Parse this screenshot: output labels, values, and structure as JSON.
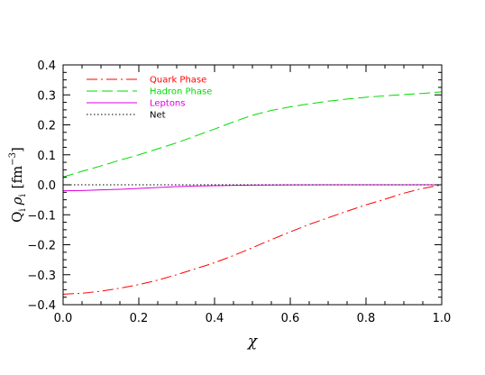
{
  "chart_data": {
    "type": "line",
    "title": "",
    "xlabel": "χ",
    "ylabel": {
      "q": "Q",
      "q_sub": "i",
      "rho": "ρ",
      "rho_sub": "i",
      "unit_open": "[fm",
      "unit_exp": "−3",
      "unit_close": "]"
    },
    "xlim": [
      0,
      1
    ],
    "ylim": [
      -0.4,
      0.4
    ],
    "xticks": [
      {
        "value": 0.0,
        "label": "0.0"
      },
      {
        "value": 0.2,
        "label": "0.2"
      },
      {
        "value": 0.4,
        "label": "0.4"
      },
      {
        "value": 0.6,
        "label": "0.6"
      },
      {
        "value": 0.8,
        "label": "0.8"
      },
      {
        "value": 1.0,
        "label": "1.0"
      }
    ],
    "yticks": [
      {
        "value": -0.4,
        "label": "−0.4"
      },
      {
        "value": -0.3,
        "label": "−0.3"
      },
      {
        "value": -0.2,
        "label": "−0.2"
      },
      {
        "value": -0.1,
        "label": "−0.1"
      },
      {
        "value": 0.0,
        "label": "0.0"
      },
      {
        "value": 0.1,
        "label": "0.1"
      },
      {
        "value": 0.2,
        "label": "0.2"
      },
      {
        "value": 0.3,
        "label": "0.3"
      },
      {
        "value": 0.4,
        "label": "0.4"
      }
    ],
    "grid": false,
    "legend_position": "top-left",
    "series": [
      {
        "name": "Quark Phase",
        "color": "#ff0000",
        "dash": "dash-dot",
        "x": [
          0.0,
          0.05,
          0.1,
          0.15,
          0.2,
          0.25,
          0.3,
          0.35,
          0.4,
          0.45,
          0.5,
          0.55,
          0.6,
          0.65,
          0.7,
          0.75,
          0.8,
          0.85,
          0.9,
          0.95,
          1.0
        ],
        "y": [
          -0.365,
          -0.362,
          -0.355,
          -0.345,
          -0.333,
          -0.318,
          -0.3,
          -0.28,
          -0.26,
          -0.236,
          -0.21,
          -0.183,
          -0.157,
          -0.132,
          -0.11,
          -0.088,
          -0.067,
          -0.048,
          -0.028,
          -0.012,
          0.0
        ]
      },
      {
        "name": "Hadron Phase",
        "color": "#00dd00",
        "dash": "dashed",
        "x": [
          0.0,
          0.05,
          0.1,
          0.15,
          0.2,
          0.25,
          0.3,
          0.35,
          0.4,
          0.45,
          0.5,
          0.55,
          0.6,
          0.65,
          0.7,
          0.75,
          0.8,
          0.85,
          0.9,
          0.95,
          1.0
        ],
        "y": [
          0.026,
          0.045,
          0.063,
          0.082,
          0.1,
          0.12,
          0.14,
          0.163,
          0.186,
          0.21,
          0.232,
          0.248,
          0.26,
          0.27,
          0.279,
          0.286,
          0.292,
          0.297,
          0.301,
          0.305,
          0.31
        ]
      },
      {
        "name": "Leptons",
        "color": "#dd00dd",
        "dash": "solid",
        "x": [
          0.0,
          0.05,
          0.1,
          0.15,
          0.2,
          0.25,
          0.3,
          0.35,
          0.4,
          0.45,
          0.5,
          0.6,
          0.7,
          0.8,
          0.9,
          1.0
        ],
        "y": [
          -0.02,
          -0.019,
          -0.017,
          -0.015,
          -0.012,
          -0.009,
          -0.006,
          -0.004,
          -0.003,
          -0.002,
          -0.001,
          -0.0005,
          0.0,
          0.0,
          0.0,
          0.0
        ]
      },
      {
        "name": "Net",
        "color": "#000000",
        "dash": "dotted",
        "x": [
          0.0,
          1.0
        ],
        "y": [
          0.0,
          0.0
        ]
      }
    ]
  }
}
